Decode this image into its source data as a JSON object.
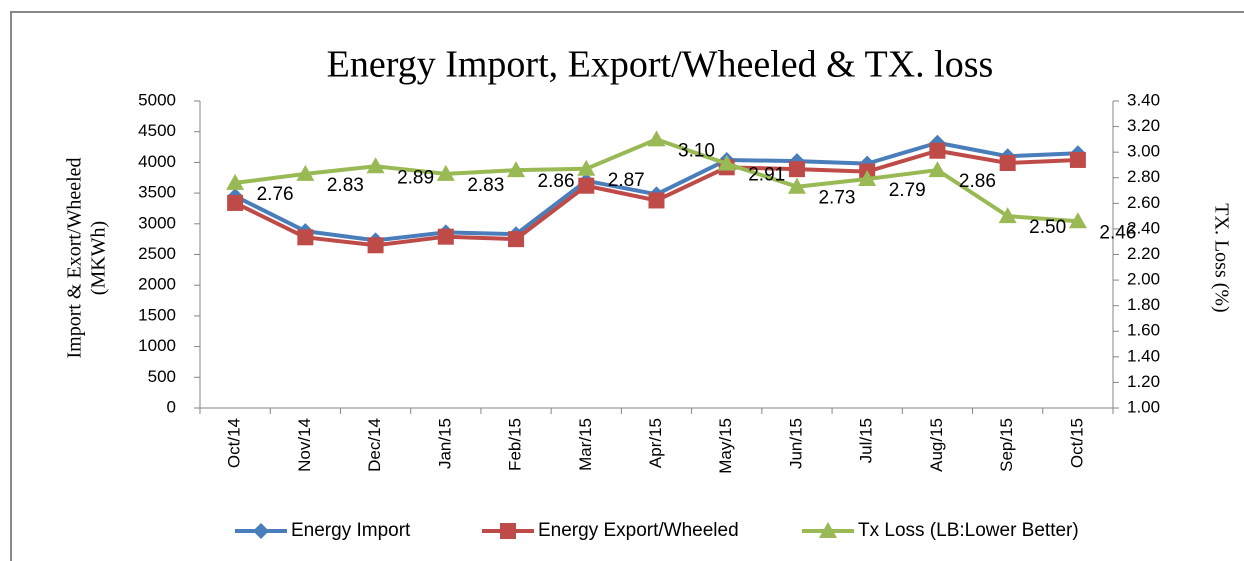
{
  "chart_data": {
    "type": "line",
    "title": "Energy Import, Export/Wheeled & TX. loss",
    "y_label": [
      "Import &  Exort/Wheeled",
      "(MKWh)"
    ],
    "y2_label": "TX. Loss (%)",
    "categories": [
      "Oct/14",
      "Nov/14",
      "Dec/14",
      "Jan/15",
      "Feb/15",
      "Mar/15",
      "Apr/15",
      "May/15",
      "Jun/15",
      "Jul/15",
      "Aug/15",
      "Sep/15",
      "Oct/15"
    ],
    "ylim": [
      0,
      5000
    ],
    "yticks": [
      0,
      500,
      1000,
      1500,
      2000,
      2500,
      3000,
      3500,
      4000,
      4500,
      5000
    ],
    "y2lim": [
      1,
      3.4
    ],
    "y2ticks": [
      {
        "value": 1,
        "label": "1.00"
      },
      {
        "value": 1.2,
        "label": "1.20"
      },
      {
        "value": 1.4,
        "label": "1.40"
      },
      {
        "value": 1.6,
        "label": "1.60"
      },
      {
        "value": 1.8,
        "label": "1.80"
      },
      {
        "value": 2,
        "label": "2.00"
      },
      {
        "value": 2.2,
        "label": "2.20"
      },
      {
        "value": 2.4,
        "label": "2.40"
      },
      {
        "value": 2.6,
        "label": "2.60"
      },
      {
        "value": 2.8,
        "label": "2.80"
      },
      {
        "value": 3,
        "label": "3.00"
      },
      {
        "value": 3.2,
        "label": "3.20"
      },
      {
        "value": 3.4,
        "label": "3.40"
      }
    ],
    "legend": "bottom",
    "series": [
      {
        "name": "Energy Import",
        "color": "#4a7ebb",
        "marker": "diamond",
        "values": [
          3450,
          2880,
          2730,
          2860,
          2830,
          3700,
          3480,
          4040,
          4020,
          3980,
          4320,
          4100,
          4150
        ]
      },
      {
        "name": "Energy Export/Wheeled",
        "color": "#be4b48",
        "marker": "square",
        "values": [
          3340,
          2780,
          2650,
          2790,
          2750,
          3620,
          3380,
          3920,
          3890,
          3850,
          4190,
          3990,
          4040
        ]
      },
      {
        "name": "Tx Loss (LB:Lower Better)",
        "color": "#98b954",
        "marker": "triangle",
        "axis": "y2",
        "values": [
          2.76,
          2.83,
          2.89,
          2.83,
          2.86,
          2.87,
          3.1,
          2.91,
          2.73,
          2.79,
          2.86,
          2.5,
          2.46
        ],
        "value_labels": [
          "2.76",
          "2.83",
          "2.89",
          "2.83",
          "2.86",
          "2.87",
          "3.10",
          "2.91",
          "2.73",
          "2.79",
          "2.86",
          "2.50",
          "2.46"
        ]
      }
    ]
  }
}
